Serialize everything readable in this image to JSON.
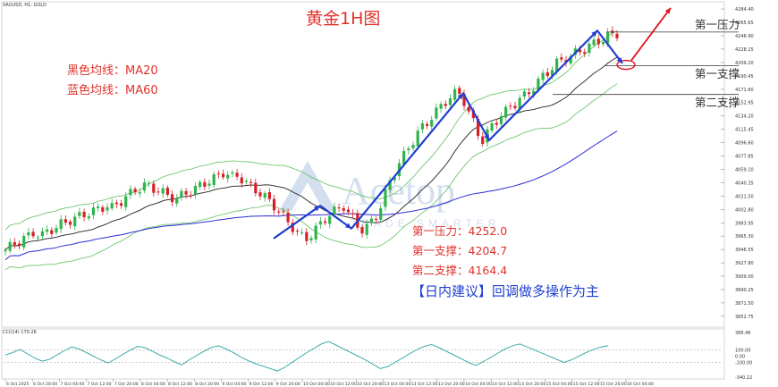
{
  "header": {
    "symbol_context": "XAUUSD, H1: GOLD",
    "title": "黄金1H图"
  },
  "legend_text": {
    "ma20": "黑色均线：MA20",
    "ma60": "蓝色均线：MA60"
  },
  "levels": {
    "resistance1_label": "第一压力：4252.0",
    "support1_label": "第一支撑：4204.7",
    "support2_label": "第二支撑：4164.4",
    "tag_resistance1": "第一压力",
    "tag_support1": "第一支撑",
    "tag_support2": "第二支撑"
  },
  "advice": "【日内建议】回调做多操作为主",
  "watermark": {
    "brand": "Acetop",
    "tagline": "TRADE SMARTER"
  },
  "cci": {
    "label": "CCI(14) 170.26",
    "scale": [
      "386.46",
      "100.00",
      "0.00",
      "-100.00",
      "-340.22"
    ]
  },
  "colors": {
    "bull": "#2fb34a",
    "bear": "#d81f26",
    "ma20": "#222222",
    "ma60": "#2b2bd6",
    "bands": "#5fbf5f",
    "cci": "#2aa3a3",
    "pen_blue": "#1f3fd0",
    "pen_red": "#e0141e",
    "annotation_red": "#e0322b"
  },
  "chart_data": {
    "type": "candlestick",
    "symbol": "XAUUSD",
    "timeframe": "H1",
    "y_ticks": [
      "4284.40",
      "4265.65",
      "4246.90",
      "4228.15",
      "4209.20",
      "4190.45",
      "4171.60",
      "4152.95",
      "4134.20",
      "4115.45",
      "4096.60",
      "4077.85",
      "4059.10",
      "4040.35",
      "4021.50",
      "4002.80",
      "3983.95",
      "3965.30",
      "3946.55",
      "3927.80",
      "3909.00",
      "3890.25",
      "3871.50",
      "3852.75"
    ],
    "ylim": [
      3840,
      4292
    ],
    "x_ticks": [
      "6 Oct 2025",
      "6 Oct 20:00",
      "7 Oct 04:00",
      "7 Oct 12:00",
      "7 Oct 20:00",
      "8 Oct 04:00",
      "8 Oct 12:00",
      "8 Oct 20:00",
      "9 Oct 04:00",
      "9 Oct 12:00",
      "9 Oct 20:00",
      "10 Oct 04:00",
      "10 Oct 12:00",
      "10 Oct 20:00",
      "13 Oct 04:00",
      "13 Oct 12:00",
      "13 Oct 20:00",
      "14 Oct 04:00",
      "14 Oct 12:00",
      "14 Oct 20:00",
      "15 Oct 04:00",
      "15 Oct 12:00",
      "15 Oct 20:00",
      "16 Oct 04:00"
    ],
    "indicators": [
      "MA20",
      "MA60",
      "Bollinger(20)",
      "CCI(14)"
    ],
    "levels": {
      "resistance_1": 4252.0,
      "support_1": 4204.7,
      "support_2": 4164.4
    },
    "cci_last": 170.26,
    "path_levels": [
      3962,
      4008,
      3976,
      4166,
      4100,
      4254,
      4208,
      4286
    ],
    "price_series": [
      3946,
      3950,
      3955,
      3958,
      3962,
      3965,
      3970,
      3968,
      3966,
      3972,
      3975,
      3978,
      3982,
      3985,
      3988,
      3990,
      3993,
      3996,
      3998,
      4000,
      4003,
      4006,
      4008,
      4005,
      4010,
      4015,
      4020,
      4025,
      4030,
      4033,
      4036,
      4035,
      4032,
      4030,
      4026,
      4022,
      4020,
      4018,
      4022,
      4026,
      4028,
      4032,
      4036,
      4040,
      4043,
      4046,
      4050,
      4055,
      4052,
      4048,
      4050,
      4046,
      4040,
      4034,
      4030,
      4026,
      4020,
      4014,
      4008,
      4000,
      3992,
      3985,
      3978,
      3970,
      3964,
      3962,
      3968,
      3975,
      3982,
      3990,
      3996,
      4000,
      4004,
      4008,
      3998,
      3990,
      3980,
      3975,
      3978,
      3985,
      3995,
      4008,
      4025,
      4042,
      4055,
      4068,
      4078,
      4090,
      4100,
      4110,
      4118,
      4125,
      4133,
      4140,
      4148,
      4155,
      4160,
      4165,
      4166,
      4155,
      4138,
      4125,
      4110,
      4100,
      4110,
      4120,
      4128,
      4136,
      4140,
      4148,
      4152,
      4158,
      4162,
      4168,
      4175,
      4182,
      4190,
      4196,
      4202,
      4208,
      4212,
      4216,
      4218,
      4222,
      4226,
      4228,
      4232,
      4236,
      4240,
      4242,
      4246,
      4248,
      4250
    ],
    "cci_series": [
      20,
      60,
      110,
      40,
      -30,
      -80,
      -50,
      20,
      90,
      150,
      120,
      60,
      0,
      -60,
      -110,
      -40,
      30,
      100,
      160,
      140,
      80,
      20,
      -30,
      -90,
      -140,
      -60,
      10,
      80,
      140,
      170,
      120,
      60,
      -10,
      -70,
      -120,
      -160,
      -200,
      -240,
      -180,
      -100,
      -20,
      60,
      130,
      200,
      240,
      180,
      120,
      60,
      0,
      -60,
      -130,
      -200,
      -170,
      -100,
      -30,
      40,
      110,
      160,
      190,
      140,
      80,
      20,
      -40,
      -100,
      -150,
      -90,
      -20,
      50,
      120,
      170,
      200,
      150,
      100,
      50,
      0,
      -50,
      -100,
      -60,
      0,
      60,
      110,
      150,
      170
    ]
  }
}
